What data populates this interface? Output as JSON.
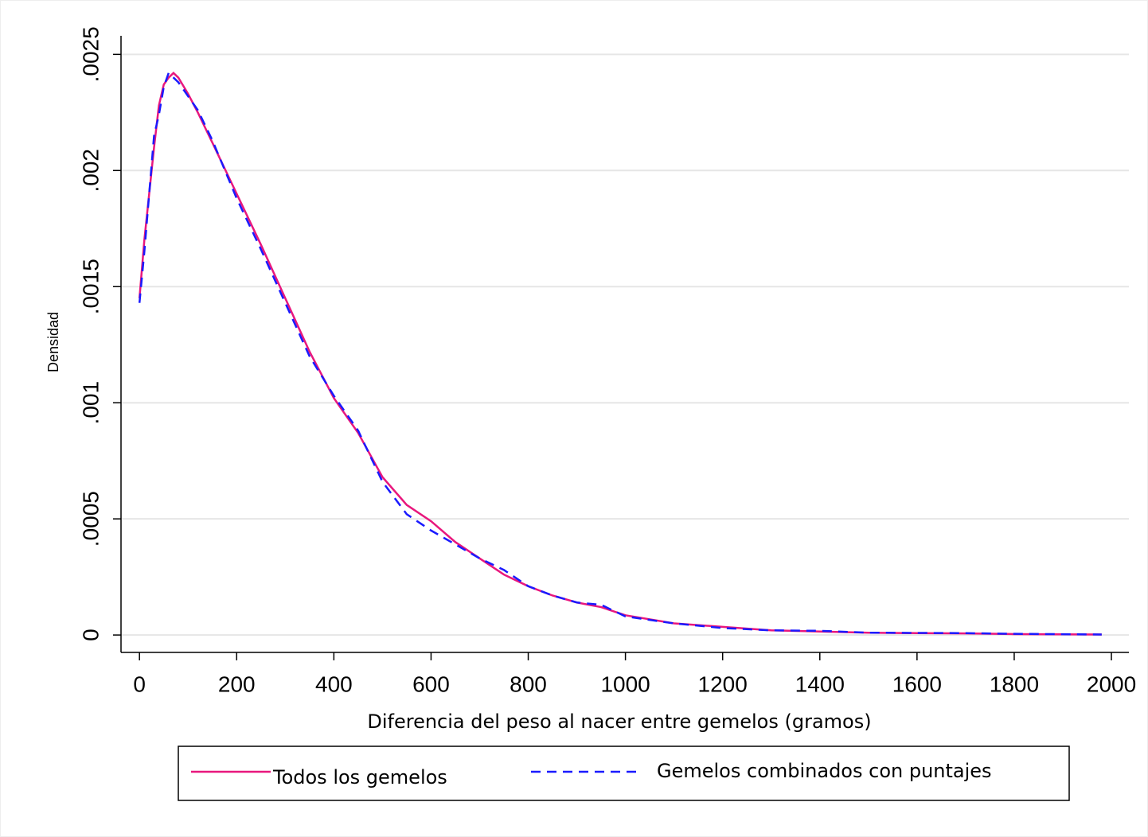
{
  "chart_data": {
    "type": "line",
    "x_label": "Diferencia del peso al nacer entre gemelos (gramos)",
    "y_label": "Densidad",
    "x": [
      0,
      10,
      20,
      30,
      40,
      50,
      60,
      70,
      80,
      100,
      120,
      150,
      200,
      250,
      300,
      350,
      400,
      450,
      500,
      550,
      600,
      650,
      700,
      750,
      800,
      850,
      900,
      950,
      1000,
      1100,
      1200,
      1300,
      1400,
      1500,
      1600,
      1700,
      1800,
      1980
    ],
    "series": [
      {
        "name": "Todos los gemelos",
        "color": "#e8177d",
        "dash": false,
        "values": [
          0.00145,
          0.0017,
          0.0019,
          0.0021,
          0.00228,
          0.00237,
          0.0024,
          0.00242,
          0.0024,
          0.00233,
          0.00225,
          0.00212,
          0.0019,
          0.00168,
          0.00145,
          0.00122,
          0.00102,
          0.00087,
          0.00068,
          0.00056,
          0.00049,
          0.0004,
          0.00033,
          0.00026,
          0.00021,
          0.00017,
          0.00014,
          0.00012,
          8.5e-05,
          5e-05,
          3.5e-05,
          2e-05,
          1.5e-05,
          1e-05,
          8e-06,
          7e-06,
          4e-06,
          2e-06
        ]
      },
      {
        "name": "Gemelos combinados con puntajes",
        "color": "#1a1aff",
        "dash": true,
        "values": [
          0.00143,
          0.00165,
          0.0019,
          0.00215,
          0.00224,
          0.00236,
          0.00242,
          0.0024,
          0.00238,
          0.00232,
          0.00226,
          0.00213,
          0.00188,
          0.00166,
          0.00143,
          0.0012,
          0.00103,
          0.00088,
          0.00066,
          0.00052,
          0.00045,
          0.00039,
          0.00033,
          0.00028,
          0.00021,
          0.00017,
          0.00014,
          0.00013,
          8e-05,
          5e-05,
          3e-05,
          2e-05,
          1.8e-05,
          1e-05,
          9e-06,
          8e-06,
          5e-06,
          2e-06
        ]
      }
    ],
    "xlim": [
      -38,
      2036
    ],
    "ylim": [
      -7.5e-05,
      0.00258
    ],
    "xticks": [
      0,
      200,
      400,
      600,
      800,
      1000,
      1200,
      1400,
      1600,
      1800,
      2000
    ],
    "yticks": [
      0,
      {
        "value": 0.0005,
        "label": ".0005"
      },
      {
        "value": 0.001,
        "label": ".001"
      },
      {
        "value": 0.0015,
        "label": ".0015"
      },
      {
        "value": 0.002,
        "label": ".002"
      },
      {
        "value": 0.0025,
        "label": ".0025"
      }
    ],
    "grid": true,
    "legend": "bottom"
  }
}
